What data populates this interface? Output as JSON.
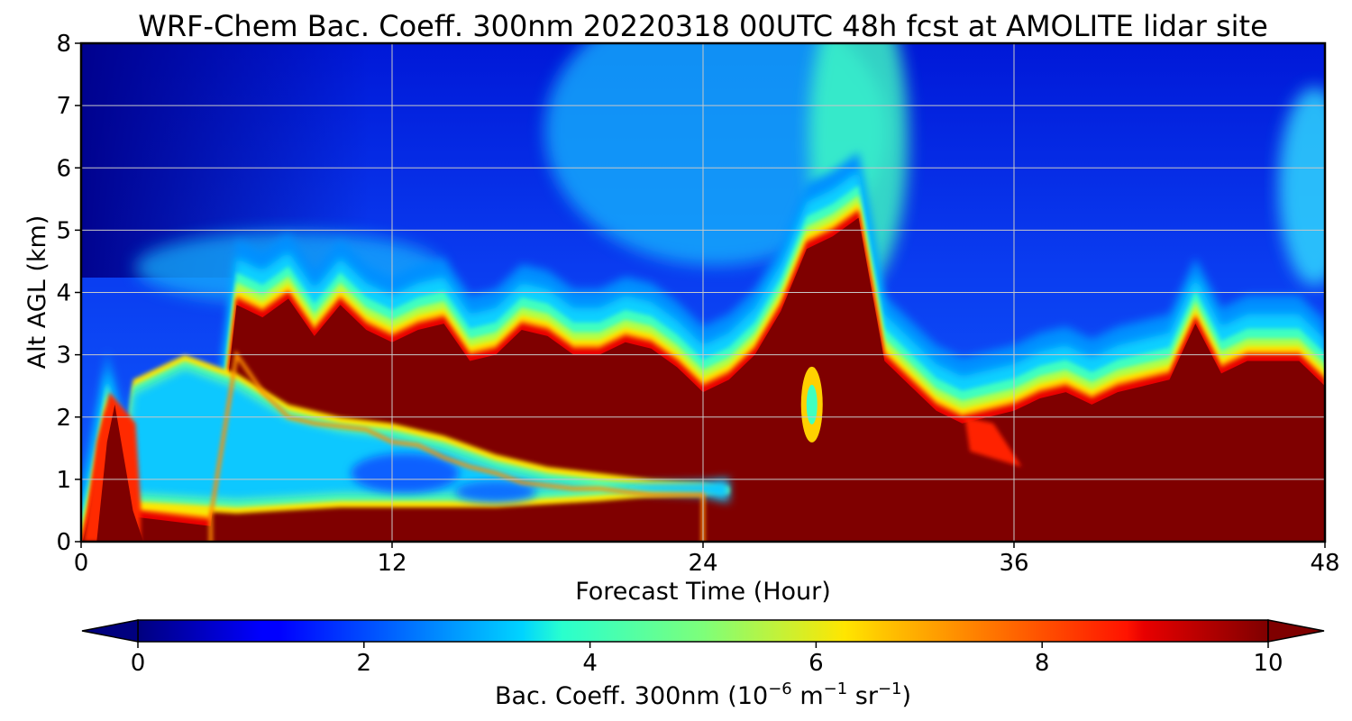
{
  "chart_data": {
    "type": "heatmap",
    "title": "WRF-Chem Bac. Coeff. 300nm  20220318 00UTC 48h fcst at AMOLITE lidar site",
    "xlabel": "Forecast Time (Hour)",
    "ylabel": "Alt AGL (km)",
    "xlim": [
      0,
      48
    ],
    "ylim": [
      0,
      8
    ],
    "xticks": [
      0,
      12,
      24,
      36,
      48
    ],
    "yticks": [
      0,
      1,
      2,
      3,
      4,
      5,
      6,
      7,
      8
    ],
    "grid": true,
    "colormap": "jet",
    "colorbar": {
      "label_main": "Bac. Coeff. 300nm  (10",
      "label_exp1": "−6",
      "label_unit1": " m",
      "label_exp2": "−1",
      "label_unit2": " sr",
      "label_exp3": "−1",
      "label_close": ")",
      "range": [
        0,
        10
      ],
      "ticks": [
        0,
        2,
        4,
        6,
        8,
        10
      ],
      "extend": "both",
      "over_color": "#7f0000",
      "under_color": "#00007f"
    },
    "aerosol_layer_top_km": {
      "hours": [
        0,
        0.3,
        1,
        2,
        3,
        4,
        5,
        6,
        7,
        8,
        9,
        10,
        11,
        12,
        13,
        14,
        15,
        16,
        17,
        18,
        19,
        20,
        21,
        22,
        23,
        24,
        25,
        26,
        27,
        28,
        29,
        30,
        31,
        32,
        33,
        34,
        35,
        36,
        37,
        38,
        39,
        40,
        41,
        42,
        43,
        44,
        45,
        46,
        47,
        48
      ],
      "values": [
        0,
        0.5,
        2.1,
        0.5,
        0.45,
        0.4,
        0.35,
        3.9,
        3.7,
        4.0,
        3.4,
        3.9,
        3.5,
        3.3,
        3.5,
        3.6,
        3.0,
        3.1,
        3.5,
        3.4,
        3.1,
        3.1,
        3.3,
        3.2,
        2.9,
        2.5,
        2.7,
        3.1,
        3.8,
        4.8,
        5.0,
        5.3,
        3.0,
        2.6,
        2.2,
        2.0,
        2.1,
        2.2,
        2.4,
        2.5,
        2.3,
        2.5,
        2.6,
        2.7,
        3.6,
        2.8,
        3.0,
        3.0,
        3.0,
        2.6
      ]
    },
    "upper_layer_top_km": {
      "hours": [
        5,
        6,
        7,
        8,
        9,
        10,
        11,
        12,
        13,
        14,
        15,
        16,
        17,
        18,
        19,
        20,
        21,
        22,
        23,
        24
      ],
      "values": [
        0.4,
        3.0,
        2.4,
        2.0,
        1.9,
        1.85,
        1.8,
        1.6,
        1.55,
        1.35,
        1.2,
        1.1,
        0.95,
        0.9,
        0.85,
        0.85,
        0.8,
        0.75,
        0.75,
        0.75
      ]
    },
    "clean_pocket_km": {
      "hour": 28.2,
      "altitude": 2.2
    },
    "elevated_patch_km": {
      "hour": 35,
      "altitude": 1.6
    }
  }
}
